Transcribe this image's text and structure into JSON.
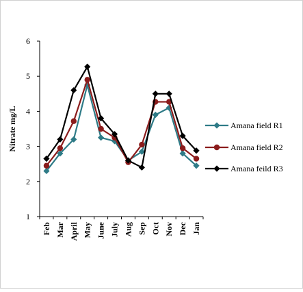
{
  "chart_data": {
    "type": "line",
    "title": "",
    "xlabel": "",
    "ylabel": "Nitrate mg/L",
    "ylim": [
      1,
      6
    ],
    "yticks": [
      1,
      2,
      3,
      4,
      5,
      6
    ],
    "grid": false,
    "legend_position": "right",
    "categories": [
      "Feb",
      "Mar",
      "April",
      "May",
      "June",
      "July",
      "Aug",
      "Sep",
      "Oct",
      "Nov",
      "Dec",
      "Jan"
    ],
    "series": [
      {
        "name": "Amana field R1",
        "color": "#2e7b87",
        "marker": "diamond",
        "values": [
          2.3,
          2.8,
          3.2,
          4.75,
          3.25,
          3.15,
          2.6,
          2.85,
          3.9,
          4.1,
          2.8,
          2.45
        ]
      },
      {
        "name": "Amana field R2",
        "color": "#8b1c1c",
        "marker": "circle",
        "values": [
          2.45,
          2.95,
          3.72,
          4.9,
          3.5,
          3.25,
          2.55,
          3.05,
          4.27,
          4.27,
          2.95,
          2.65
        ]
      },
      {
        "name": "Amana feild R3",
        "color": "#000000",
        "marker": "diamond",
        "values": [
          2.65,
          3.2,
          4.6,
          5.27,
          3.8,
          3.35,
          2.6,
          2.4,
          4.5,
          4.5,
          3.3,
          2.88
        ]
      }
    ]
  }
}
